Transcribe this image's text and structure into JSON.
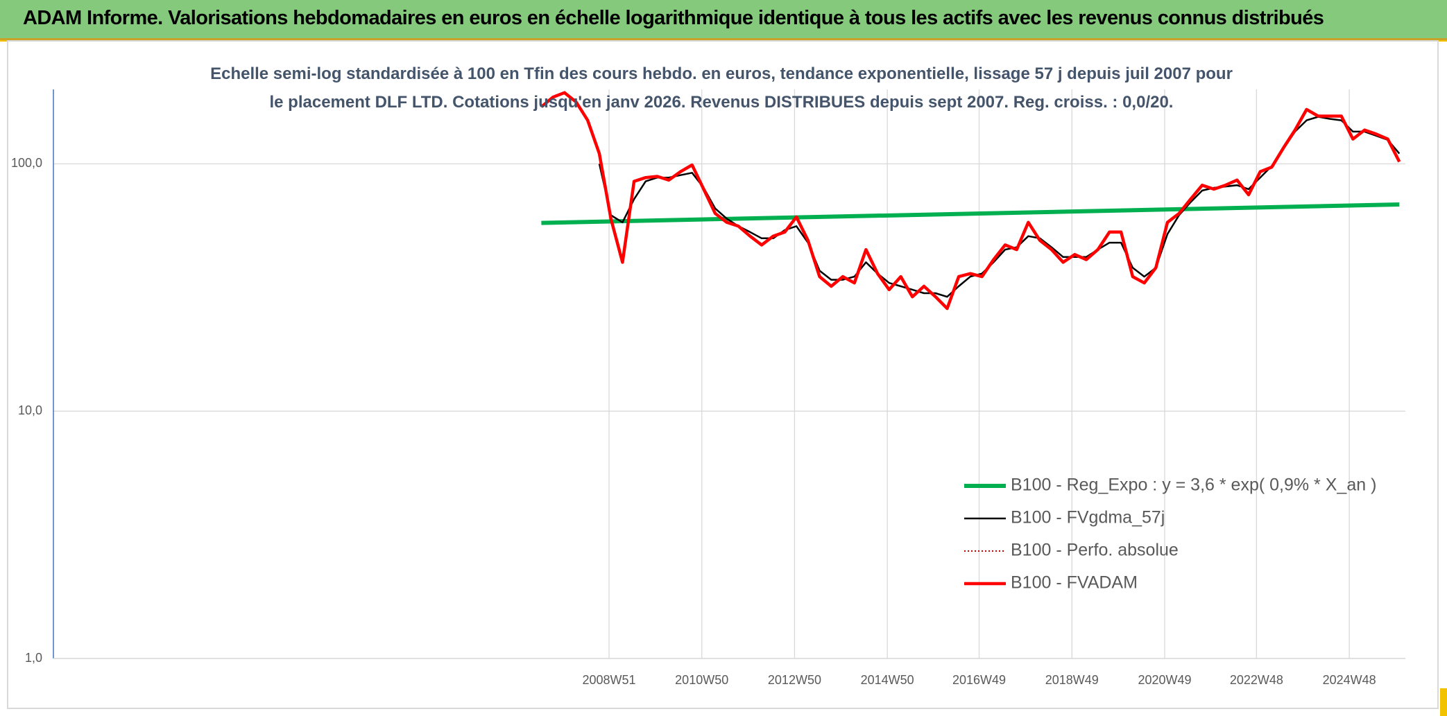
{
  "chart_data": {
    "type": "line",
    "title": "ADAM Informe. Valorisations hebdomadaires en euros en échelle logarithmique identique à tous les actifs avec les revenus connus distribués",
    "subtitle": "Echelle semi-log standardisée à 100 en Tfin des cours hebdo. en euros, tendance exponentielle, lissage 57 j depuis juil 2007 pour le placement DLF LTD. Cotations jusqu'en janv 2026. Revenus DISTRIBUES depuis sept 2007. Reg. croiss. : 0,0/20.",
    "log_y": true,
    "grid": true,
    "legend": "lower right",
    "xlim": [
      1996.98,
      2026.13
    ],
    "xticks": [
      {
        "value": 2008.96,
        "label": "2008W51"
      },
      {
        "value": 2010.96,
        "label": "2010W50"
      },
      {
        "value": 2012.96,
        "label": "2012W50"
      },
      {
        "value": 2014.96,
        "label": "2014W50"
      },
      {
        "value": 2016.94,
        "label": "2016W49"
      },
      {
        "value": 2018.94,
        "label": "2018W49"
      },
      {
        "value": 2020.94,
        "label": "2020W49"
      },
      {
        "value": 2022.92,
        "label": "2022W48"
      },
      {
        "value": 2024.92,
        "label": "2024W48"
      }
    ],
    "ylim": [
      1,
      200
    ],
    "yticks": [
      {
        "value": 1,
        "label": "1,0"
      },
      {
        "value": 10,
        "label": "10,0"
      },
      {
        "value": 100,
        "label": "100,0"
      }
    ],
    "x": [
      2007.5,
      2007.75,
      2008,
      2008.25,
      2008.5,
      2008.75,
      2009,
      2009.25,
      2009.5,
      2009.75,
      2010,
      2010.25,
      2010.5,
      2010.75,
      2011,
      2011.25,
      2011.5,
      2011.75,
      2012,
      2012.25,
      2012.5,
      2012.75,
      2013,
      2013.25,
      2013.5,
      2013.75,
      2014,
      2014.25,
      2014.5,
      2014.75,
      2015,
      2015.25,
      2015.5,
      2015.75,
      2016,
      2016.25,
      2016.5,
      2016.75,
      2017,
      2017.25,
      2017.5,
      2017.75,
      2018,
      2018.25,
      2018.5,
      2018.75,
      2019,
      2019.25,
      2019.5,
      2019.75,
      2020,
      2020.25,
      2020.5,
      2020.75,
      2021,
      2021.25,
      2021.5,
      2021.75,
      2022,
      2022.25,
      2022.5,
      2022.75,
      2023,
      2023.25,
      2023.5,
      2023.75,
      2024,
      2024.25,
      2024.5,
      2024.75,
      2025,
      2025.25,
      2025.5,
      2025.75,
      2026
    ],
    "series": [
      {
        "name": "B100 - Reg_Expo : y = 3,6 * exp( 0,9% *  X_an )",
        "color": "#00b050",
        "width": 6,
        "x": [
          2007.5,
          2026.0
        ],
        "values": [
          57.7,
          68.5
        ]
      },
      {
        "name": "B100 - FVgdma_57j",
        "color": "#000000",
        "width": 2.5,
        "values": [
          null,
          null,
          null,
          null,
          null,
          100,
          62,
          58,
          72,
          85,
          88,
          88,
          90,
          92,
          80,
          66,
          60,
          56,
          53,
          50,
          50,
          54,
          56,
          48,
          37,
          34,
          34,
          35,
          40,
          36,
          33,
          32,
          31,
          30,
          30,
          29,
          32,
          35,
          36,
          40,
          45,
          46,
          51,
          50,
          46,
          42,
          42,
          42,
          45,
          48,
          48,
          38,
          35,
          38,
          52,
          62,
          70,
          78,
          80,
          81,
          82,
          79,
          88,
          98,
          115,
          135,
          150,
          155,
          152,
          150,
          135,
          135,
          130,
          125,
          110
        ]
      },
      {
        "name": "B100 - Perfo. absolue",
        "color": "#c00000",
        "width": 2,
        "line_style": "dotted",
        "values": [
          170,
          186,
          194,
          178,
          150,
          110,
          60,
          40,
          85,
          88,
          89,
          86,
          93,
          99,
          79,
          63,
          58,
          56,
          51,
          47,
          51,
          53,
          61,
          49,
          35,
          32,
          35,
          33,
          45,
          36,
          31,
          35,
          29,
          32,
          29,
          26,
          35,
          36,
          35,
          41,
          47,
          45,
          58,
          49,
          45,
          40,
          43,
          41,
          45,
          53,
          53,
          35,
          33,
          38,
          58,
          63,
          72,
          82,
          79,
          82,
          86,
          75,
          93,
          97,
          116,
          137,
          166,
          156,
          156,
          156,
          126,
          137,
          132,
          126,
          102
        ]
      },
      {
        "name": "B100 - FVADAM",
        "color": "#ff0000",
        "width": 4.5,
        "values": [
          170,
          186,
          194,
          178,
          150,
          110,
          60,
          40,
          85,
          88,
          89,
          86,
          93,
          99,
          79,
          63,
          58,
          56,
          51,
          47,
          51,
          53,
          61,
          49,
          35,
          32,
          35,
          33,
          45,
          36,
          31,
          35,
          29,
          32,
          29,
          26,
          35,
          36,
          35,
          41,
          47,
          45,
          58,
          49,
          45,
          40,
          43,
          41,
          45,
          53,
          53,
          35,
          33,
          38,
          58,
          63,
          72,
          82,
          79,
          82,
          86,
          75,
          93,
          97,
          116,
          137,
          166,
          156,
          156,
          156,
          126,
          137,
          132,
          126,
          102
        ]
      }
    ]
  }
}
